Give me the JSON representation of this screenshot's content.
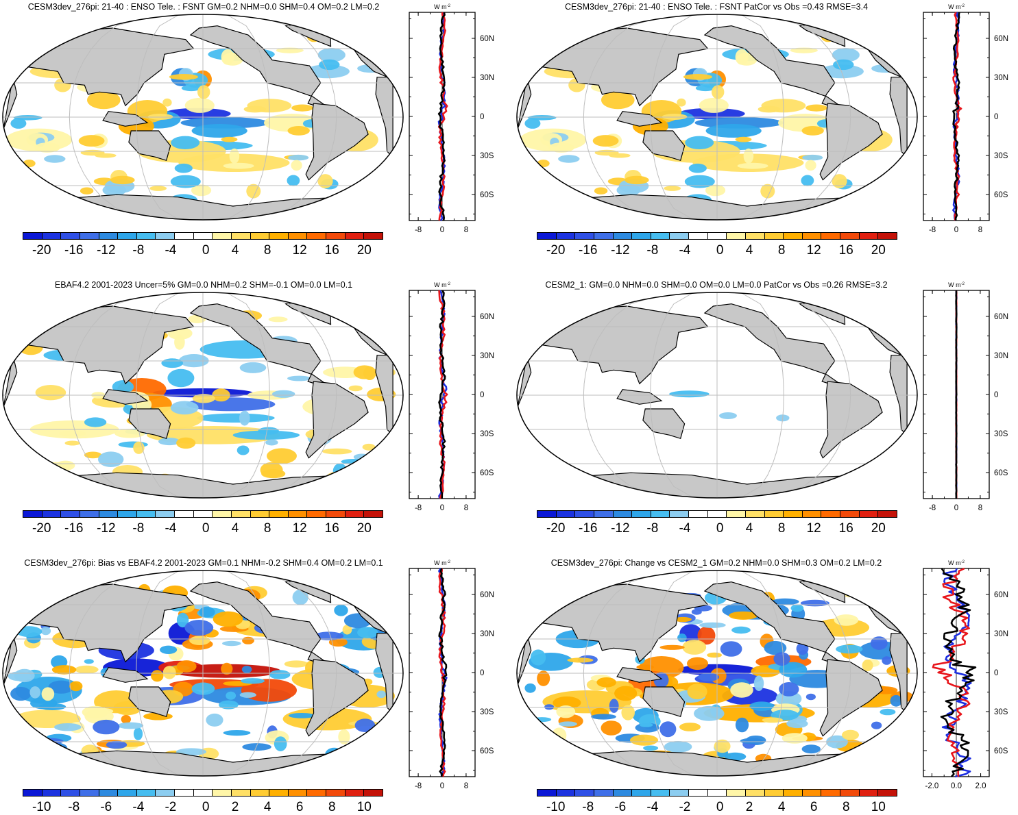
{
  "colors": {
    "scale": [
      "#0b18d6",
      "#1c33e0",
      "#2f50e6",
      "#3f6fe8",
      "#2d8ae0",
      "#2ea6ea",
      "#46bdf0",
      "#8ccdf0",
      "#ffffff",
      "#ffffff",
      "#fff6a8",
      "#ffe066",
      "#ffcc33",
      "#ffb000",
      "#ff9000",
      "#ff6a00",
      "#f24a0a",
      "#e02010",
      "#c41208"
    ],
    "land": "#c8c8c8",
    "grid": "#bdbdbd",
    "line_model": "#000000",
    "line_obs_a": "#e8151b",
    "line_obs_b": "#1b2de0"
  },
  "units": "W m",
  "units_exp": "-2",
  "lat_ticks": [
    "60N",
    "30N",
    "0",
    "30S",
    "60S"
  ],
  "panels": [
    {
      "id": "p1",
      "title": "CESM3dev_276pi: 21-40 : ENSO Tele. : FSNT GM=0.2 NHM=0.0 SHM=0.4 OM=0.2 LM=0.2",
      "cbar_labels": [
        "-20",
        "-16",
        "-12",
        "-8",
        "-4",
        "0",
        "4",
        "8",
        "12",
        "16",
        "20"
      ],
      "profile_ticks": [
        "-8",
        "0",
        "8"
      ]
    },
    {
      "id": "p2",
      "title": "CESM3dev_276pi: 21-40 : ENSO Tele. : FSNT PatCor vs Obs =0.43 RMSE=3.4",
      "cbar_labels": [
        "-20",
        "-16",
        "-12",
        "-8",
        "-4",
        "0",
        "4",
        "8",
        "12",
        "16",
        "20"
      ],
      "profile_ticks": [
        "-8",
        "0",
        "8"
      ]
    },
    {
      "id": "p3",
      "title": "EBAF4.2 2001-2023 Uncer=5% GM=0.0 NHM=0.2 SHM=-0.1 OM=0.0 LM=0.1",
      "cbar_labels": [
        "-20",
        "-16",
        "-12",
        "-8",
        "-4",
        "0",
        "4",
        "8",
        "12",
        "16",
        "20"
      ],
      "profile_ticks": [
        "-8",
        "0",
        "8"
      ]
    },
    {
      "id": "p4",
      "title": "CESM2_1: GM=0.0 NHM=0.0 SHM=0.0 OM=0.0 LM=0.0 PatCor vs Obs =0.26 RMSE=3.2",
      "cbar_labels": [
        "-20",
        "-16",
        "-12",
        "-8",
        "-4",
        "0",
        "4",
        "8",
        "12",
        "16",
        "20"
      ],
      "profile_ticks": [
        "-8",
        "0",
        "8"
      ]
    },
    {
      "id": "p5",
      "title": "CESM3dev_276pi: Bias vs EBAF4.2 2001-2023 GM=0.1 NHM=-0.2 SHM=0.4 OM=0.2 LM=0.1",
      "cbar_labels": [
        "-10",
        "-8",
        "-6",
        "-4",
        "-2",
        "0",
        "2",
        "4",
        "6",
        "8",
        "10"
      ],
      "profile_ticks": [
        "-8",
        "0",
        "8"
      ]
    },
    {
      "id": "p6",
      "title": "CESM3dev_276pi: Change vs CESM2_1 GM=0.2 NHM=0.0 SHM=0.3 OM=0.2 LM=0.2",
      "cbar_labels": [
        "-10",
        "-8",
        "-6",
        "-4",
        "-2",
        "0",
        "2",
        "4",
        "6",
        "8",
        "10"
      ],
      "profile_ticks": [
        "-2.0",
        "0.0",
        "2.0"
      ]
    }
  ]
}
